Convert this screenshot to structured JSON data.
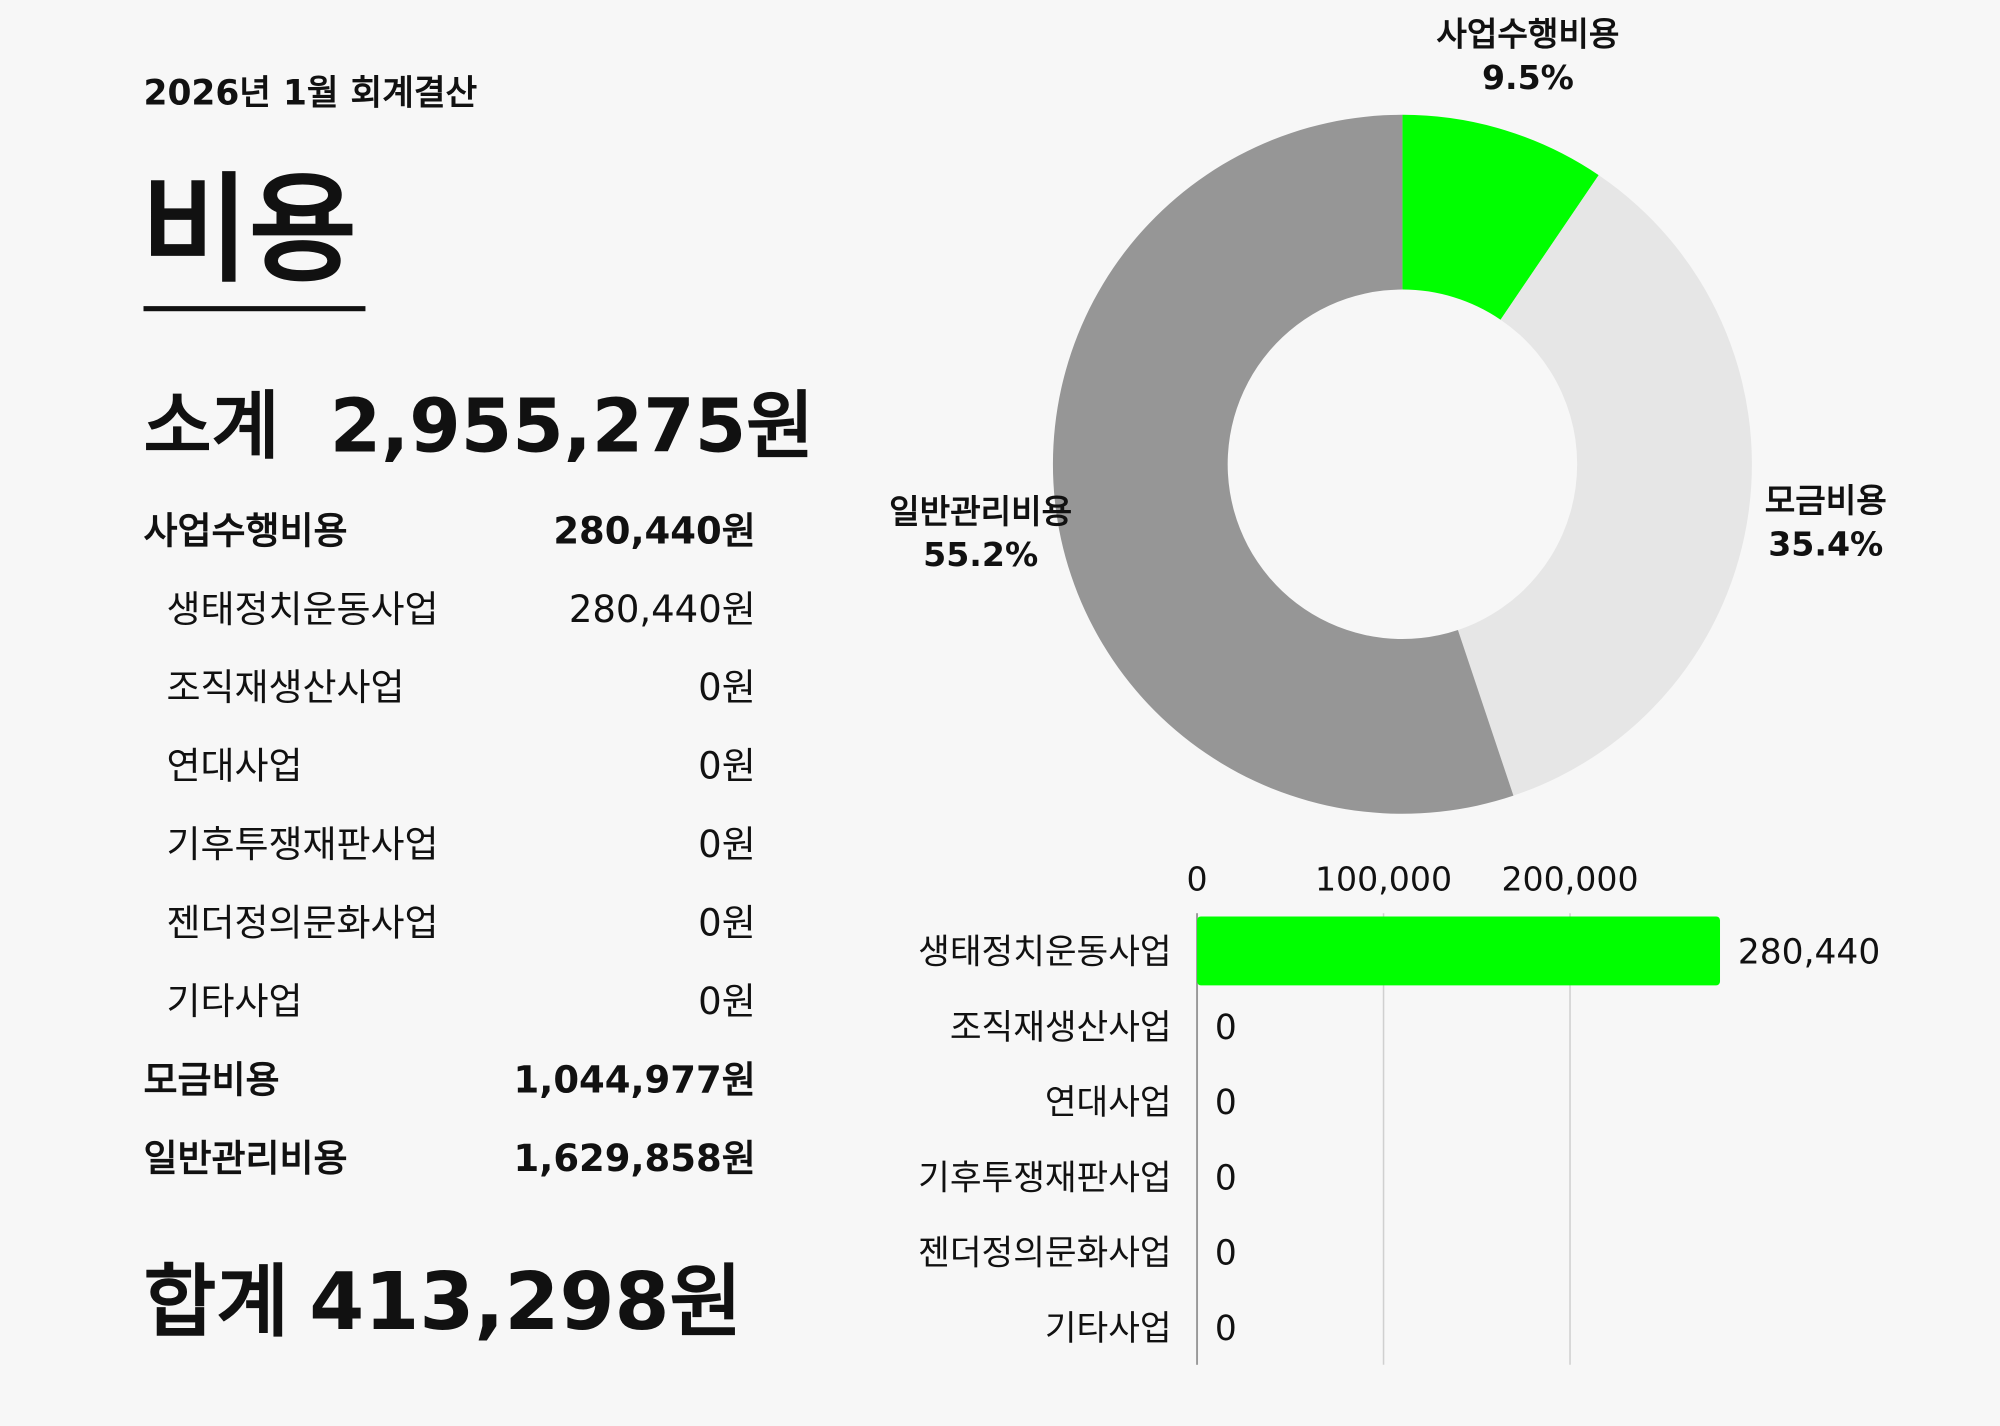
{
  "header": {
    "title": "2026년 1월 회계결산",
    "heading": "비용"
  },
  "subtotal": {
    "label": "소계",
    "amount": "2,955,275원"
  },
  "items": [
    {
      "name": "사업수행비용",
      "amount": "280,440원",
      "children": [
        {
          "name": "생태정치운동사업",
          "amount": "280,440원"
        },
        {
          "name": "조직재생산사업",
          "amount": "0원"
        },
        {
          "name": "연대사업",
          "amount": "0원"
        },
        {
          "name": "기후투쟁재판사업",
          "amount": "0원"
        },
        {
          "name": "젠더정의문화사업",
          "amount": "0원"
        },
        {
          "name": "기타사업",
          "amount": "0원"
        }
      ]
    },
    {
      "name": "모금비용",
      "amount": "1,044,977원"
    },
    {
      "name": "일반관리비용",
      "amount": "1,629,858원"
    }
  ],
  "total": {
    "label": "합계",
    "amount": "413,298원"
  },
  "chart_data": [
    {
      "type": "donut",
      "categories": [
        "사업수행비용",
        "모금비용",
        "일반관리비용"
      ],
      "values": [
        9.5,
        35.4,
        55.2
      ],
      "value_labels": [
        "9.5%",
        "35.4%",
        "55.2%"
      ],
      "colors": [
        "#00ff00",
        "#e6e6e6",
        "#969696"
      ]
    },
    {
      "type": "bar",
      "orientation": "horizontal",
      "categories": [
        "생태정치운동사업",
        "조직재생산사업",
        "연대사업",
        "기후투쟁재판사업",
        "젠더정의문화사업",
        "기타사업"
      ],
      "values": [
        280440,
        0,
        0,
        0,
        0,
        0
      ],
      "value_labels": [
        "280,440",
        "0",
        "0",
        "0",
        "0",
        "0"
      ],
      "color": "#00ff00",
      "xlim": [
        0,
        280440
      ],
      "xticks": [
        0,
        {
          "value": 100000,
          "label": "100,000"
        },
        {
          "value": 200000,
          "label": "200,000"
        }
      ],
      "grid": true
    }
  ]
}
